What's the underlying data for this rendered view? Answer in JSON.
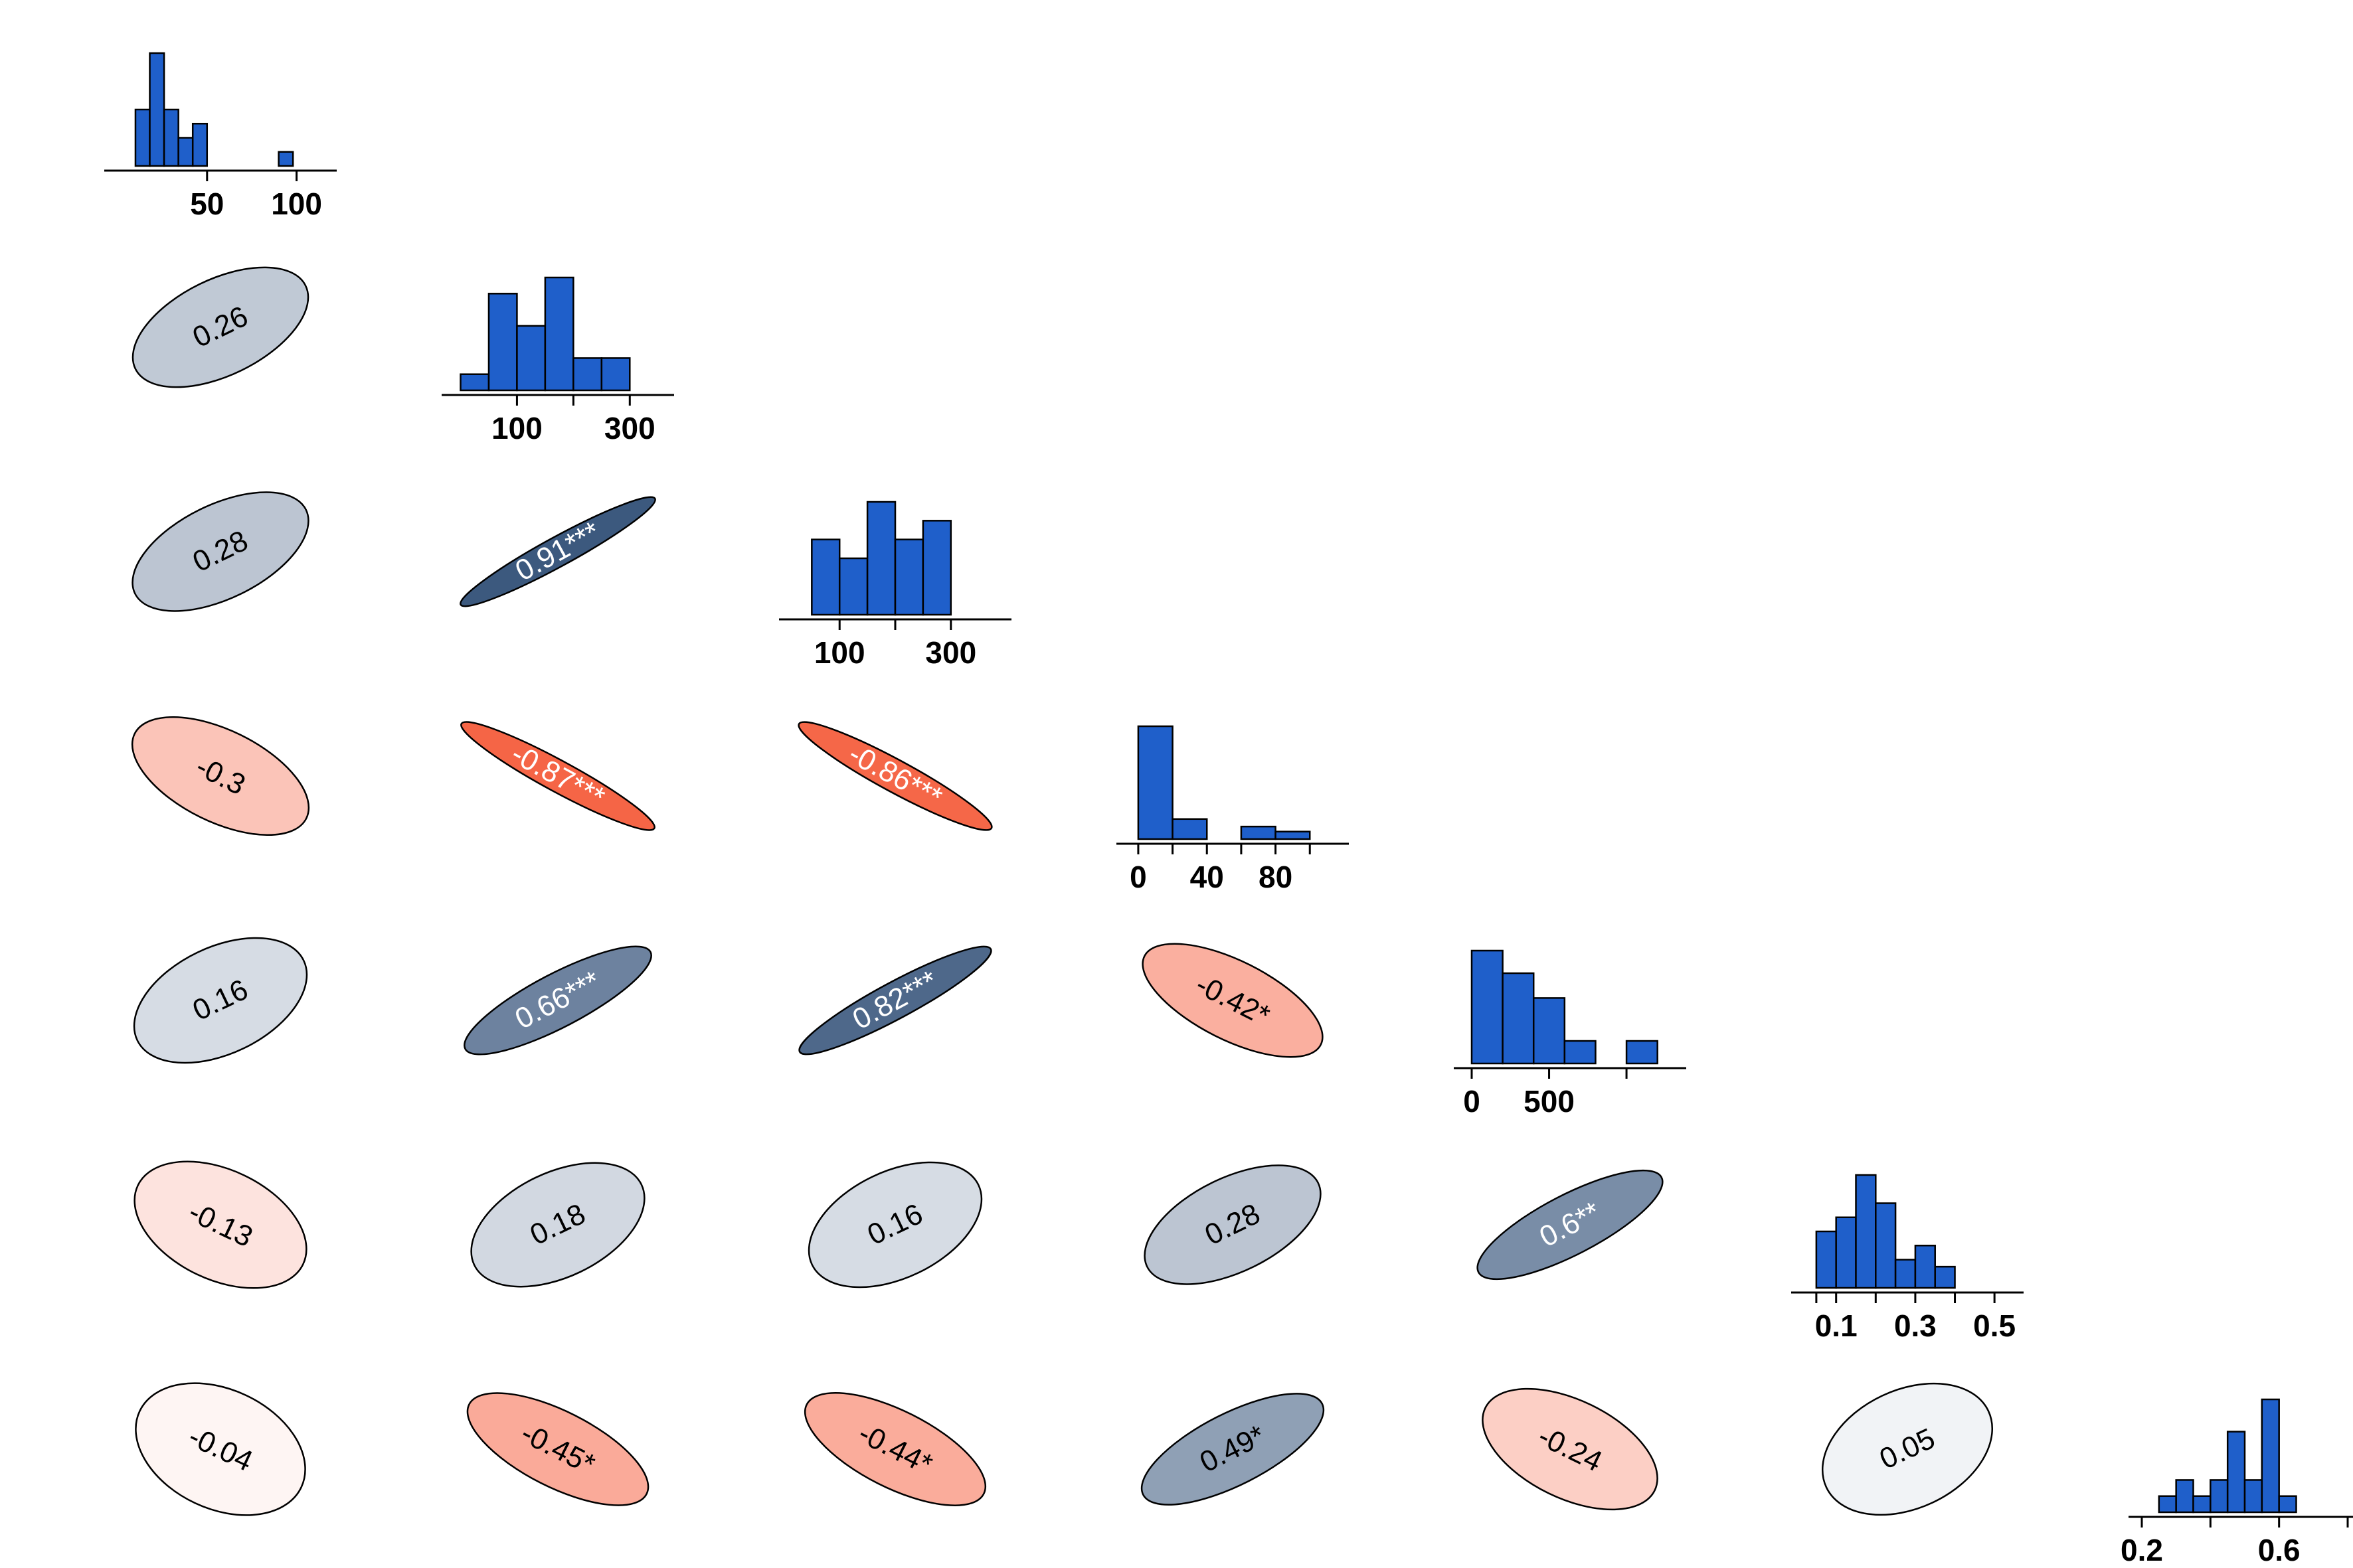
{
  "chart_data": {
    "type": "correlation-matrix",
    "colors": {
      "histogram_bar": "#1f5fca",
      "strong_positive": "#2b4a73",
      "strong_negative": "#f4512d",
      "neutral": "#ffffff"
    },
    "histograms": [
      {
        "bins": [
          [
            10,
            18
          ],
          [
            18,
            26
          ],
          [
            26,
            34
          ],
          [
            34,
            42
          ],
          [
            42,
            50
          ],
          [
            50,
            58
          ],
          [
            58,
            66
          ],
          [
            66,
            74
          ],
          [
            74,
            82
          ],
          [
            82,
            90
          ],
          [
            90,
            98
          ]
        ],
        "counts": [
          2,
          4,
          2,
          1,
          1.5,
          0,
          0,
          0,
          0,
          0,
          0.5
        ],
        "xlim": [
          0,
          115
        ],
        "ticks": [
          50,
          100
        ],
        "tick_labels": [
          "50",
          "100"
        ]
      },
      {
        "bins": [
          [
            0,
            50
          ],
          [
            50,
            100
          ],
          [
            100,
            150
          ],
          [
            150,
            200
          ],
          [
            200,
            250
          ],
          [
            250,
            300
          ]
        ],
        "counts": [
          1,
          6,
          4,
          7,
          2,
          2
        ],
        "xlim": [
          -10,
          355
        ],
        "ticks": [
          100,
          200,
          300
        ],
        "tick_labels": [
          "100",
          "",
          "300"
        ]
      },
      {
        "bins": [
          [
            50,
            100
          ],
          [
            100,
            150
          ],
          [
            150,
            200
          ],
          [
            200,
            250
          ],
          [
            250,
            300
          ]
        ],
        "counts": [
          4,
          3,
          6,
          4,
          5
        ],
        "xlim": [
          15,
          385
        ],
        "ticks": [
          100,
          200,
          300
        ],
        "tick_labels": [
          "100",
          "",
          "300"
        ]
      },
      {
        "bins": [
          [
            0,
            20
          ],
          [
            20,
            40
          ],
          [
            40,
            60
          ],
          [
            60,
            80
          ],
          [
            80,
            100
          ]
        ],
        "counts": [
          9,
          1.6,
          0,
          1,
          0.6
        ],
        "xlim": [
          -5,
          115
        ],
        "ticks": [
          0,
          20,
          40,
          60,
          80,
          100
        ],
        "tick_labels": [
          "0",
          "",
          "40",
          "",
          "80",
          ""
        ]
      },
      {
        "bins": [
          [
            0,
            200
          ],
          [
            200,
            400
          ],
          [
            400,
            600
          ],
          [
            600,
            800
          ],
          [
            800,
            1000
          ],
          [
            1000,
            1200
          ]
        ],
        "counts": [
          5,
          4,
          2.9,
          1,
          0,
          1
        ],
        "xlim": [
          -30,
          1300
        ],
        "ticks": [
          0,
          500,
          1000
        ],
        "tick_labels": [
          "0",
          "500",
          ""
        ]
      },
      {
        "bins": [
          [
            0.05,
            0.1
          ],
          [
            0.1,
            0.15
          ],
          [
            0.15,
            0.2
          ],
          [
            0.2,
            0.25
          ],
          [
            0.25,
            0.3
          ],
          [
            0.3,
            0.35
          ],
          [
            0.35,
            0.4
          ]
        ],
        "counts": [
          4,
          5,
          8,
          6,
          2,
          3,
          1.5
        ],
        "xlim": [
          0.02,
          0.54
        ],
        "ticks": [
          0.05,
          0.1,
          0.2,
          0.3,
          0.4,
          0.5
        ],
        "tick_labels": [
          "",
          "0.1",
          "",
          "0.3",
          "",
          "0.5"
        ]
      },
      {
        "bins": [
          [
            0.25,
            0.3
          ],
          [
            0.3,
            0.35
          ],
          [
            0.35,
            0.4
          ],
          [
            0.4,
            0.45
          ],
          [
            0.45,
            0.5
          ],
          [
            0.5,
            0.55
          ],
          [
            0.55,
            0.6
          ],
          [
            0.6,
            0.65
          ]
        ],
        "counts": [
          1,
          2,
          1,
          2,
          5,
          2,
          7,
          1
        ],
        "xlim": [
          0.2,
          0.8
        ],
        "ticks": [
          0.2,
          0.4,
          0.6,
          0.8
        ],
        "tick_labels": [
          "0.2",
          "",
          "0.6",
          ""
        ]
      }
    ],
    "correlations": [
      {
        "row": 1,
        "col": 0,
        "r": 0.26,
        "label": "0.26"
      },
      {
        "row": 2,
        "col": 0,
        "r": 0.28,
        "label": "0.28"
      },
      {
        "row": 2,
        "col": 1,
        "r": 0.91,
        "label": "0.91***"
      },
      {
        "row": 3,
        "col": 0,
        "r": -0.3,
        "label": "-0.3"
      },
      {
        "row": 3,
        "col": 1,
        "r": -0.87,
        "label": "-0.87***"
      },
      {
        "row": 3,
        "col": 2,
        "r": -0.86,
        "label": "-0.86***"
      },
      {
        "row": 4,
        "col": 0,
        "r": 0.16,
        "label": "0.16"
      },
      {
        "row": 4,
        "col": 1,
        "r": 0.66,
        "label": "0.66***"
      },
      {
        "row": 4,
        "col": 2,
        "r": 0.82,
        "label": "0.82***"
      },
      {
        "row": 4,
        "col": 3,
        "r": -0.42,
        "label": "-0.42*"
      },
      {
        "row": 5,
        "col": 0,
        "r": -0.13,
        "label": "-0.13"
      },
      {
        "row": 5,
        "col": 1,
        "r": 0.18,
        "label": "0.18"
      },
      {
        "row": 5,
        "col": 2,
        "r": 0.16,
        "label": "0.16"
      },
      {
        "row": 5,
        "col": 3,
        "r": 0.28,
        "label": "0.28"
      },
      {
        "row": 5,
        "col": 4,
        "r": 0.6,
        "label": "0.6**"
      },
      {
        "row": 6,
        "col": 0,
        "r": -0.04,
        "label": "-0.04"
      },
      {
        "row": 6,
        "col": 1,
        "r": -0.45,
        "label": "-0.45*"
      },
      {
        "row": 6,
        "col": 2,
        "r": -0.44,
        "label": "-0.44*"
      },
      {
        "row": 6,
        "col": 3,
        "r": 0.49,
        "label": "0.49*"
      },
      {
        "row": 6,
        "col": 4,
        "r": -0.24,
        "label": "-0.24"
      },
      {
        "row": 6,
        "col": 5,
        "r": 0.05,
        "label": "0.05"
      }
    ]
  }
}
